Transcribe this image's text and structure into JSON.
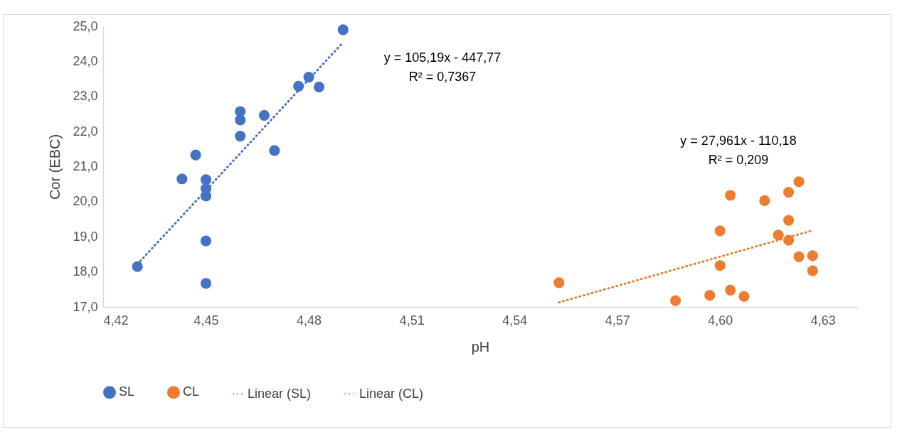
{
  "chart_data": {
    "type": "scatter",
    "xlabel": "pH",
    "ylabel": "Cor (EBC)",
    "xlim": [
      4.42,
      4.64
    ],
    "ylim": [
      17,
      25
    ],
    "xticks": [
      {
        "value": 4.42,
        "label": "4,42"
      },
      {
        "value": 4.45,
        "label": "4,45"
      },
      {
        "value": 4.48,
        "label": "4,48"
      },
      {
        "value": 4.51,
        "label": "4,51"
      },
      {
        "value": 4.54,
        "label": "4,54"
      },
      {
        "value": 4.57,
        "label": "4,57"
      },
      {
        "value": 4.6,
        "label": "4,60"
      },
      {
        "value": 4.63,
        "label": "4,63"
      }
    ],
    "yticks": [
      {
        "value": 17,
        "label": "17,0"
      },
      {
        "value": 18,
        "label": "18,0"
      },
      {
        "value": 19,
        "label": "19,0"
      },
      {
        "value": 20,
        "label": "20,0"
      },
      {
        "value": 21,
        "label": "21,0"
      },
      {
        "value": 22,
        "label": "22,0"
      },
      {
        "value": 23,
        "label": "23,0"
      },
      {
        "value": 24,
        "label": "24,0"
      },
      {
        "value": 25,
        "label": "25,0"
      }
    ],
    "grid": false,
    "legend": "bottom",
    "series": [
      {
        "name": "SL",
        "marker": "circle",
        "color": "#4472c4",
        "x": [
          4.43,
          4.443,
          4.447,
          4.45,
          4.45,
          4.45,
          4.45,
          4.45,
          4.46,
          4.46,
          4.46,
          4.467,
          4.47,
          4.477,
          4.48,
          4.483,
          4.49
        ],
        "values": [
          18.15,
          20.65,
          21.33,
          20.63,
          20.37,
          20.16,
          18.88,
          17.67,
          22.57,
          22.33,
          21.87,
          22.46,
          21.46,
          23.29,
          23.55,
          23.27,
          24.9
        ]
      },
      {
        "name": "CL",
        "marker": "circle",
        "color": "#ed7d31",
        "x": [
          4.553,
          4.587,
          4.597,
          4.6,
          4.6,
          4.603,
          4.603,
          4.607,
          4.613,
          4.617,
          4.62,
          4.62,
          4.62,
          4.623,
          4.623,
          4.627,
          4.627
        ],
        "values": [
          17.69,
          17.18,
          17.33,
          19.17,
          18.18,
          20.18,
          17.48,
          17.3,
          20.03,
          19.05,
          20.27,
          19.47,
          18.9,
          20.57,
          18.43,
          18.46,
          18.03
        ]
      },
      {
        "name": "Linear (SL)",
        "type": "line",
        "line_style": "dotted",
        "color": "#4472c4",
        "x": [
          4.43,
          4.49
        ],
        "values": [
          18.22,
          24.54
        ]
      },
      {
        "name": "Linear (CL)",
        "type": "line",
        "line_style": "dotted",
        "color": "#ed7d31",
        "x": [
          4.553,
          4.627
        ],
        "values": [
          17.13,
          19.18
        ]
      }
    ],
    "annotations": [
      "y = 105,19x - 447,77\nR² = 0,7367",
      "y = 27,961x - 110,18\nR² = 0,209"
    ]
  }
}
